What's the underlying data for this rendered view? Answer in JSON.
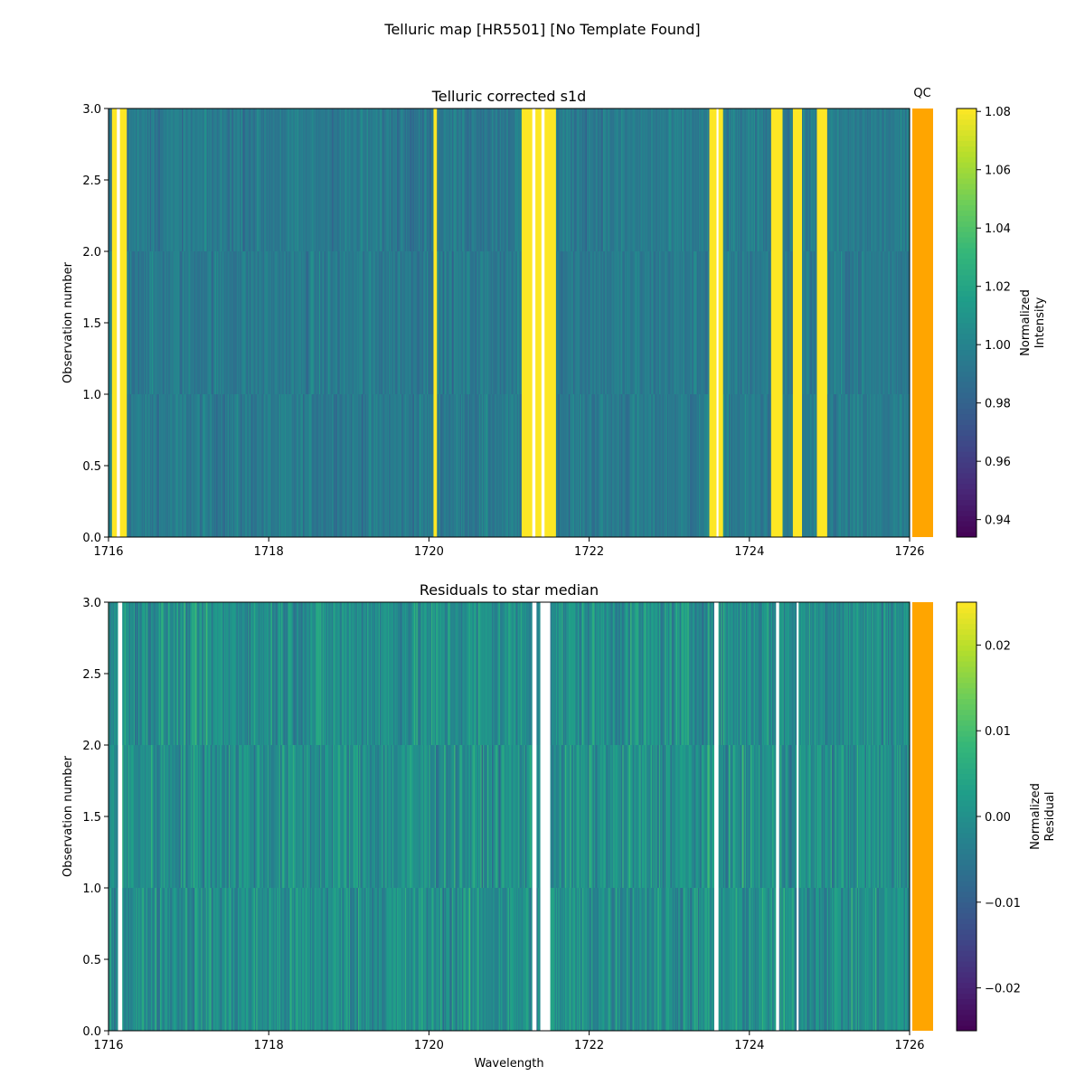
{
  "figure_title": "Telluric map [HR5501] [No Template Found]",
  "chart_data": [
    {
      "type": "heatmap",
      "title": "Telluric corrected s1d",
      "xlabel": "",
      "ylabel": "Observation number",
      "xlim": [
        1716,
        1726
      ],
      "ylim": [
        0,
        3
      ],
      "xticks": [
        "1716",
        "1718",
        "1720",
        "1722",
        "1724",
        "1726"
      ],
      "yticks": [
        "0.0",
        "0.5",
        "1.0",
        "1.5",
        "2.0",
        "2.5",
        "3.0"
      ],
      "rows": 3,
      "colormap": "viridis",
      "colorbar": {
        "label": "Normalized\nIntensity",
        "label_lines": [
          "Normalized",
          "Intensity"
        ],
        "range": [
          0.934,
          1.081
        ],
        "ticks": [
          "0.94",
          "0.96",
          "0.98",
          "1.00",
          "1.02",
          "1.04",
          "1.06",
          "1.08"
        ]
      },
      "typical_value": 0.995,
      "saturated_bands": [
        [
          1716.05,
          1716.23
        ],
        [
          1720.06,
          1720.1
        ],
        [
          1721.16,
          1721.58
        ],
        [
          1723.5,
          1723.67
        ],
        [
          1724.27,
          1724.42
        ],
        [
          1724.55,
          1724.66
        ],
        [
          1724.84,
          1724.97
        ]
      ],
      "masked_bands": [
        [
          1716.1,
          1716.14
        ],
        [
          1721.29,
          1721.33
        ],
        [
          1721.4,
          1721.44
        ],
        [
          1723.58,
          1723.61
        ]
      ],
      "low_region": [
        1723.68,
        1724.3
      ],
      "qc": {
        "label": "QC",
        "color": "#ffa500"
      }
    },
    {
      "type": "heatmap",
      "title": "Residuals to star median",
      "xlabel": "Wavelength",
      "ylabel": "Observation number",
      "xlim": [
        1716,
        1726
      ],
      "ylim": [
        0,
        3
      ],
      "xticks": [
        "1716",
        "1718",
        "1720",
        "1722",
        "1724",
        "1726"
      ],
      "yticks": [
        "0.0",
        "0.5",
        "1.0",
        "1.5",
        "2.0",
        "2.5",
        "3.0"
      ],
      "rows": 3,
      "colormap": "viridis",
      "colorbar": {
        "label": "Normalized\nResidual",
        "label_lines": [
          "Normalized",
          "Residual"
        ],
        "range": [
          -0.025,
          0.025
        ],
        "ticks": [
          "−0.02",
          "−0.01",
          "0.00",
          "0.01",
          "0.02"
        ],
        "tick_values": [
          -0.02,
          -0.01,
          0,
          0.01,
          0.02
        ]
      },
      "typical_value": 0.0,
      "masked_bands": [
        [
          1716.12,
          1716.17
        ],
        [
          1721.29,
          1721.34
        ],
        [
          1721.38,
          1721.52
        ],
        [
          1723.56,
          1723.62
        ],
        [
          1724.33,
          1724.37
        ],
        [
          1724.58,
          1724.62
        ]
      ],
      "qc": {
        "label": "",
        "color": "#ffa500"
      }
    }
  ]
}
